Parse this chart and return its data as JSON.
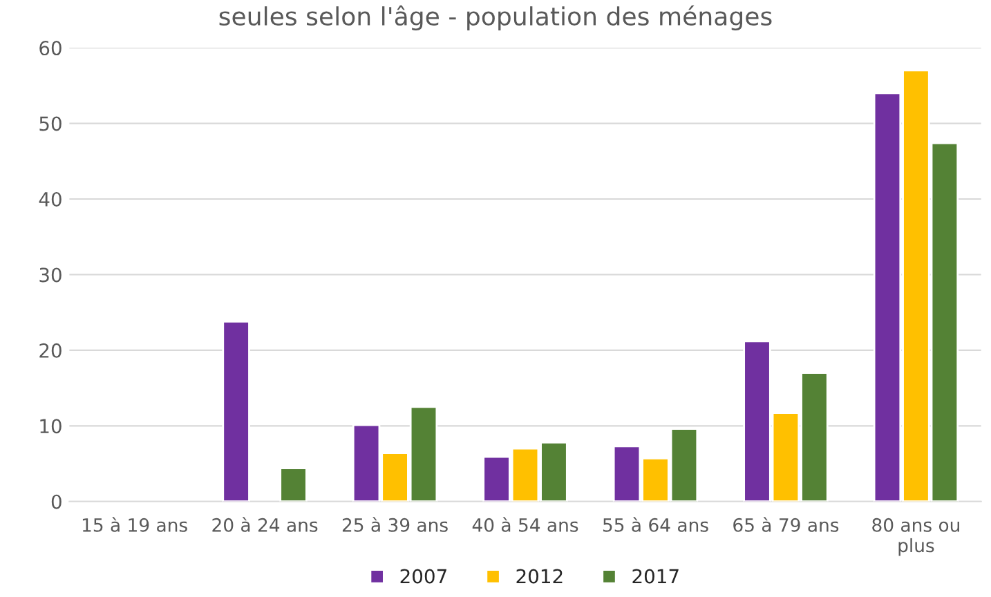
{
  "chart_data": {
    "type": "bar",
    "title": "seules selon l'âge - population des ménages",
    "categories": [
      "15 à 19 ans",
      "20 à 24 ans",
      "25 à 39 ans",
      "40 à 54 ans",
      "55 à 64 ans",
      "65 à 79 ans",
      "80 ans ou\nplus"
    ],
    "series": [
      {
        "name": "2007",
        "color": "#7030a0",
        "values": [
          null,
          23.8,
          10.1,
          5.9,
          7.3,
          21.2,
          54
        ]
      },
      {
        "name": "2012",
        "color": "#ffc000",
        "values": [
          null,
          null,
          6.4,
          7.0,
          5.7,
          11.7,
          57
        ]
      },
      {
        "name": "2017",
        "color": "#548235",
        "values": [
          null,
          4.4,
          12.5,
          7.8,
          9.6,
          17,
          47.4
        ]
      }
    ],
    "ylim": [
      0,
      60
    ],
    "yticks": [
      0,
      10,
      20,
      30,
      40,
      50,
      60
    ],
    "grid": "y",
    "legend": "bottom"
  }
}
